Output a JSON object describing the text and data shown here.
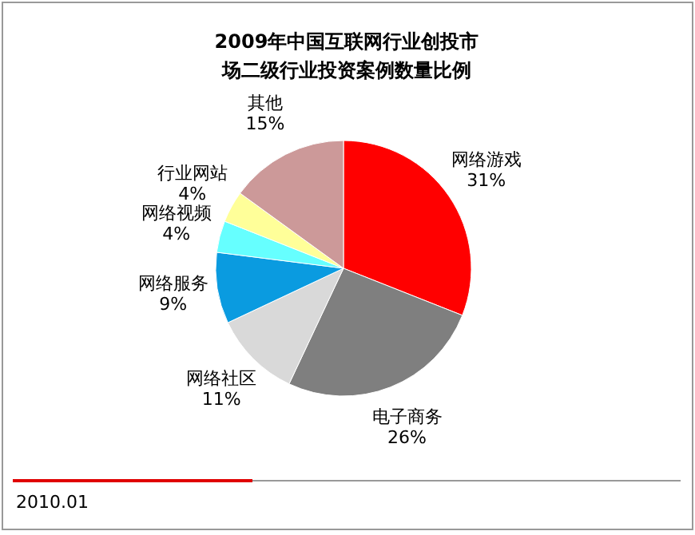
{
  "chart_data": {
    "type": "pie",
    "title": "2009年中国互联网行业创投市场二级行业投资案例数量比例",
    "categories": [
      "网络游戏",
      "电子商务",
      "网络社区",
      "网络服务",
      "网络视频",
      "行业网站",
      "其他"
    ],
    "values": [
      31,
      26,
      11,
      9,
      4,
      4,
      15
    ],
    "value_labels": [
      "31%",
      "26%",
      "11%",
      "9%",
      "4%",
      "4%",
      "15%"
    ],
    "colors": [
      "#ff0000",
      "#7f7f7f",
      "#d9d9d9",
      "#0a9be0",
      "#66ffff",
      "#ffff99",
      "#cc9999"
    ],
    "annotations": [
      "2010.01"
    ]
  }
}
